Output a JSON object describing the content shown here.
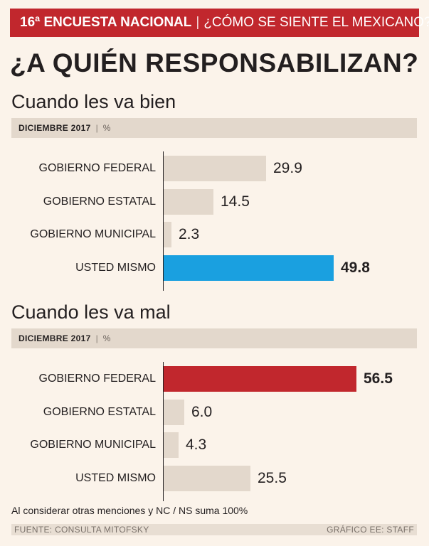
{
  "banner": {
    "survey": "16ª ENCUESTA NACIONAL",
    "separator": "|",
    "question": "¿CÓMO SE SIENTE EL MEXICANO?"
  },
  "title": "¿A QUIÉN RESPONSABILIZAN?",
  "colors": {
    "banner": "#c1272d",
    "bar_default": "#e3d8cc",
    "highlight_good": "#1aa0e0",
    "highlight_bad": "#c1272d",
    "background": "#fbf3ea"
  },
  "chart_data": [
    {
      "type": "bar",
      "orientation": "horizontal",
      "title": "Cuando les va bien",
      "period": "DICIEMBRE 2017",
      "unit": "%",
      "categories": [
        "GOBIERNO FEDERAL",
        "GOBIERNO ESTATAL",
        "GOBIERNO MUNICIPAL",
        "USTED MISMO"
      ],
      "values": [
        29.9,
        14.5,
        2.3,
        49.8
      ],
      "value_labels": [
        "29.9",
        "14.5",
        "2.3",
        "49.8"
      ],
      "highlight_index": 3,
      "highlight_color": "#1aa0e0",
      "xlim": [
        0,
        60
      ]
    },
    {
      "type": "bar",
      "orientation": "horizontal",
      "title": "Cuando les va mal",
      "period": "DICIEMBRE 2017",
      "unit": "%",
      "categories": [
        "GOBIERNO FEDERAL",
        "GOBIERNO ESTATAL",
        "GOBIERNO MUNICIPAL",
        "USTED MISMO"
      ],
      "values": [
        56.5,
        6.0,
        4.3,
        25.5
      ],
      "value_labels": [
        "56.5",
        "6.0",
        "4.3",
        "25.5"
      ],
      "highlight_index": 0,
      "highlight_color": "#c1272d",
      "xlim": [
        0,
        60
      ]
    }
  ],
  "note": "Al considerar otras menciones y NC / NS suma 100%",
  "footer": {
    "source": "FUENTE: CONSULTA MITOFSKY",
    "credit": "GRÁFICO EE: STAFF"
  }
}
